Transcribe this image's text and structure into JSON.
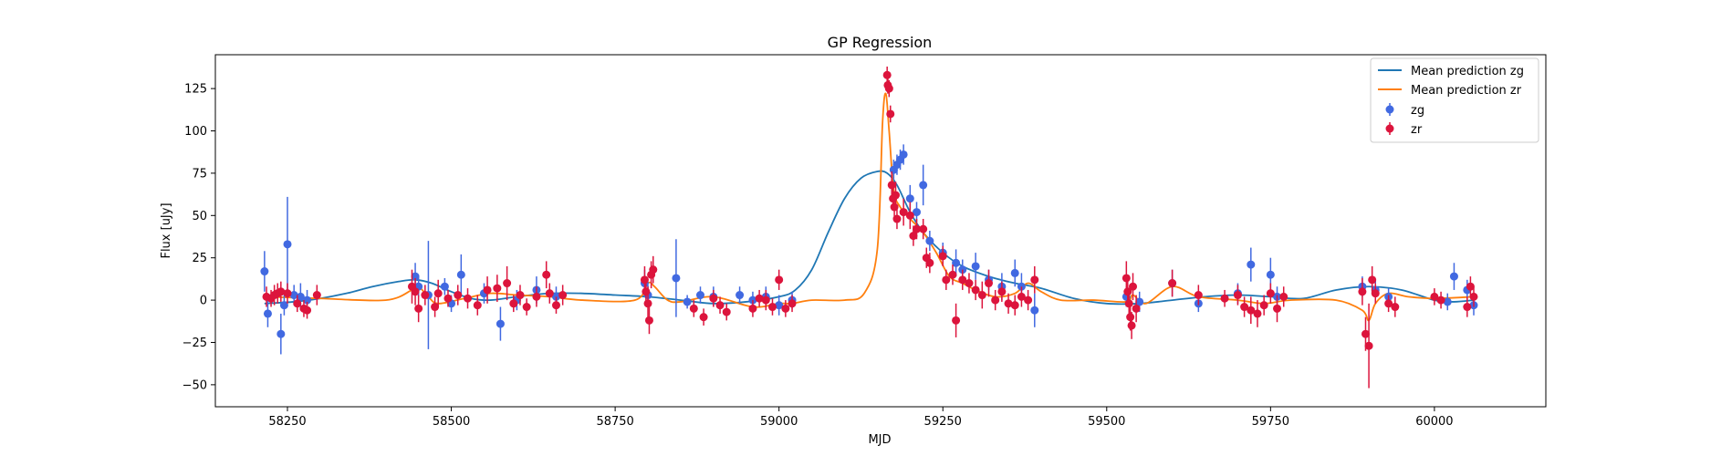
{
  "chart_data": {
    "type": "scatter",
    "title": "GP Regression",
    "xlabel": "MJD",
    "ylabel": "Flux [uJy]",
    "xlim": [
      58140,
      60170
    ],
    "ylim": [
      -63,
      145
    ],
    "xticks": [
      58250,
      58500,
      58750,
      59000,
      59250,
      59500,
      59750,
      60000
    ],
    "yticks": [
      -50,
      -25,
      0,
      25,
      50,
      75,
      100,
      125
    ],
    "legend": {
      "position": "top-right",
      "entries": [
        "Mean prediction zg",
        "Mean prediction zr",
        "zg",
        "zr"
      ]
    },
    "colors": {
      "zg_line": "#1f77b4",
      "zr_line": "#ff7f0e",
      "zg_points": "#4169e1",
      "zr_points": "#dc143c"
    },
    "series": [
      {
        "name": "Mean prediction zg",
        "kind": "line",
        "x": [
          58215,
          58260,
          58300,
          58340,
          58380,
          58420,
          58445,
          58470,
          58500,
          58530,
          58560,
          58600,
          58650,
          58700,
          58750,
          58800,
          58850,
          58900,
          58950,
          59000,
          59025,
          59050,
          59075,
          59100,
          59125,
          59150,
          59165,
          59180,
          59200,
          59220,
          59250,
          59280,
          59320,
          59360,
          59400,
          59450,
          59500,
          59550,
          59600,
          59650,
          59700,
          59750,
          59800,
          59850,
          59900,
          59950,
          60000,
          60030,
          60060
        ],
        "y": [
          -2,
          -1,
          1,
          4,
          8,
          11,
          12,
          10,
          5,
          1,
          0,
          2,
          4,
          4,
          3,
          2,
          0,
          -2,
          -1,
          2,
          6,
          18,
          40,
          60,
          72,
          76,
          75,
          68,
          52,
          40,
          28,
          20,
          14,
          10,
          7,
          1,
          -2,
          -2,
          0,
          2,
          3,
          2,
          1,
          6,
          8,
          6,
          0,
          -1,
          0
        ]
      },
      {
        "name": "Mean prediction zr",
        "kind": "line",
        "x": [
          58215,
          58300,
          58400,
          58440,
          58450,
          58465,
          58480,
          58520,
          58560,
          58600,
          58650,
          58700,
          58780,
          58800,
          58810,
          58830,
          58850,
          58900,
          58960,
          59000,
          59020,
          59050,
          59100,
          59130,
          59150,
          59158,
          59163,
          59168,
          59175,
          59185,
          59200,
          59220,
          59240,
          59260,
          59280,
          59300,
          59330,
          59360,
          59380,
          59400,
          59430,
          59480,
          59530,
          59540,
          59560,
          59600,
          59640,
          59700,
          59740,
          59780,
          59850,
          59890,
          59900,
          59910,
          59930,
          59960,
          60000,
          60060
        ],
        "y": [
          2,
          1,
          0,
          6,
          8,
          2,
          -2,
          1,
          4,
          3,
          2,
          0,
          0,
          10,
          8,
          0,
          -1,
          2,
          -4,
          -2,
          -2,
          0,
          0,
          4,
          30,
          105,
          122,
          100,
          65,
          55,
          48,
          40,
          28,
          14,
          10,
          6,
          2,
          4,
          10,
          5,
          0,
          0,
          -1,
          3,
          -2,
          8,
          2,
          0,
          -2,
          0,
          0,
          -6,
          -12,
          -2,
          4,
          2,
          1,
          2
        ]
      },
      {
        "name": "zg",
        "kind": "errorbar",
        "points": [
          [
            58215,
            17,
            12
          ],
          [
            58220,
            -8,
            8
          ],
          [
            58240,
            -20,
            12
          ],
          [
            58245,
            -3,
            6
          ],
          [
            58250,
            33,
            28
          ],
          [
            58260,
            3,
            6
          ],
          [
            58270,
            2,
            8
          ],
          [
            58280,
            0,
            6
          ],
          [
            58445,
            14,
            8
          ],
          [
            58450,
            8,
            6
          ],
          [
            58465,
            3,
            32
          ],
          [
            58490,
            8,
            5
          ],
          [
            58500,
            -2,
            5
          ],
          [
            58515,
            15,
            12
          ],
          [
            58550,
            4,
            6
          ],
          [
            58575,
            -14,
            10
          ],
          [
            58600,
            0,
            6
          ],
          [
            58630,
            6,
            8
          ],
          [
            58660,
            2,
            6
          ],
          [
            58795,
            10,
            8
          ],
          [
            58800,
            3,
            6
          ],
          [
            58843,
            13,
            23
          ],
          [
            58860,
            -1,
            4
          ],
          [
            58880,
            3,
            5
          ],
          [
            58900,
            2,
            6
          ],
          [
            58940,
            3,
            5
          ],
          [
            58960,
            0,
            5
          ],
          [
            58980,
            2,
            6
          ],
          [
            59000,
            -3,
            6
          ],
          [
            59020,
            0,
            5
          ],
          [
            59175,
            77,
            6
          ],
          [
            59180,
            80,
            6
          ],
          [
            59185,
            83,
            6
          ],
          [
            59190,
            86,
            6
          ],
          [
            59200,
            60,
            8
          ],
          [
            59210,
            52,
            6
          ],
          [
            59220,
            68,
            12
          ],
          [
            59230,
            35,
            6
          ],
          [
            59250,
            28,
            6
          ],
          [
            59270,
            22,
            8
          ],
          [
            59280,
            18,
            6
          ],
          [
            59300,
            20,
            8
          ],
          [
            59320,
            12,
            6
          ],
          [
            59340,
            8,
            8
          ],
          [
            59360,
            16,
            8
          ],
          [
            59370,
            8,
            8
          ],
          [
            59390,
            -6,
            10
          ],
          [
            59530,
            2,
            6
          ],
          [
            59550,
            -1,
            6
          ],
          [
            59600,
            10,
            8
          ],
          [
            59640,
            -2,
            5
          ],
          [
            59700,
            4,
            6
          ],
          [
            59720,
            21,
            10
          ],
          [
            59750,
            15,
            10
          ],
          [
            59760,
            2,
            6
          ],
          [
            59890,
            8,
            6
          ],
          [
            59910,
            6,
            6
          ],
          [
            59930,
            2,
            5
          ],
          [
            60020,
            -1,
            5
          ],
          [
            60030,
            14,
            8
          ],
          [
            60050,
            6,
            6
          ],
          [
            60060,
            -3,
            6
          ]
        ]
      },
      {
        "name": "zr",
        "kind": "errorbar",
        "points": [
          [
            58218,
            2,
            6
          ],
          [
            58225,
            1,
            5
          ],
          [
            58230,
            3,
            6
          ],
          [
            58235,
            4,
            6
          ],
          [
            58240,
            5,
            6
          ],
          [
            58250,
            4,
            6
          ],
          [
            58265,
            -2,
            5
          ],
          [
            58275,
            -5,
            5
          ],
          [
            58280,
            -6,
            5
          ],
          [
            58295,
            3,
            6
          ],
          [
            58440,
            8,
            10
          ],
          [
            58445,
            5,
            8
          ],
          [
            58450,
            -5,
            8
          ],
          [
            58460,
            3,
            6
          ],
          [
            58475,
            -4,
            6
          ],
          [
            58480,
            4,
            8
          ],
          [
            58495,
            1,
            5
          ],
          [
            58510,
            3,
            6
          ],
          [
            58525,
            1,
            6
          ],
          [
            58540,
            -3,
            6
          ],
          [
            58555,
            6,
            8
          ],
          [
            58570,
            7,
            8
          ],
          [
            58585,
            10,
            10
          ],
          [
            58595,
            -2,
            5
          ],
          [
            58605,
            3,
            6
          ],
          [
            58615,
            -4,
            5
          ],
          [
            58630,
            2,
            6
          ],
          [
            58645,
            15,
            8
          ],
          [
            58650,
            4,
            6
          ],
          [
            58660,
            -3,
            5
          ],
          [
            58670,
            3,
            6
          ],
          [
            58795,
            12,
            8
          ],
          [
            58797,
            5,
            6
          ],
          [
            58800,
            -2,
            10
          ],
          [
            58802,
            -12,
            8
          ],
          [
            58805,
            15,
            8
          ],
          [
            58808,
            18,
            8
          ],
          [
            58870,
            -5,
            5
          ],
          [
            58885,
            -10,
            5
          ],
          [
            58900,
            1,
            5
          ],
          [
            58910,
            -3,
            5
          ],
          [
            58920,
            -7,
            5
          ],
          [
            58960,
            -5,
            5
          ],
          [
            58970,
            1,
            5
          ],
          [
            58980,
            0,
            6
          ],
          [
            58990,
            -4,
            5
          ],
          [
            59000,
            12,
            6
          ],
          [
            59010,
            -5,
            5
          ],
          [
            59020,
            -2,
            5
          ],
          [
            59165,
            133,
            5
          ],
          [
            59166,
            127,
            5
          ],
          [
            59168,
            125,
            5
          ],
          [
            59170,
            110,
            5
          ],
          [
            59172,
            68,
            8
          ],
          [
            59174,
            60,
            6
          ],
          [
            59176,
            55,
            6
          ],
          [
            59178,
            62,
            8
          ],
          [
            59180,
            48,
            6
          ],
          [
            59190,
            52,
            8
          ],
          [
            59200,
            50,
            8
          ],
          [
            59205,
            38,
            6
          ],
          [
            59210,
            42,
            6
          ],
          [
            59220,
            42,
            6
          ],
          [
            59225,
            25,
            6
          ],
          [
            59230,
            22,
            6
          ],
          [
            59250,
            26,
            6
          ],
          [
            59255,
            12,
            6
          ],
          [
            59265,
            15,
            6
          ],
          [
            59270,
            -12,
            10
          ],
          [
            59280,
            12,
            6
          ],
          [
            59290,
            10,
            6
          ],
          [
            59300,
            6,
            6
          ],
          [
            59310,
            3,
            8
          ],
          [
            59320,
            10,
            8
          ],
          [
            59330,
            0,
            6
          ],
          [
            59340,
            5,
            6
          ],
          [
            59350,
            -2,
            6
          ],
          [
            59360,
            -3,
            6
          ],
          [
            59370,
            2,
            6
          ],
          [
            59380,
            0,
            6
          ],
          [
            59390,
            12,
            8
          ],
          [
            59530,
            13,
            10
          ],
          [
            59532,
            5,
            8
          ],
          [
            59534,
            -2,
            8
          ],
          [
            59536,
            -10,
            8
          ],
          [
            59538,
            -15,
            8
          ],
          [
            59540,
            8,
            8
          ],
          [
            59545,
            -5,
            8
          ],
          [
            59600,
            10,
            8
          ],
          [
            59640,
            3,
            6
          ],
          [
            59680,
            1,
            5
          ],
          [
            59700,
            3,
            6
          ],
          [
            59710,
            -4,
            6
          ],
          [
            59720,
            -6,
            8
          ],
          [
            59730,
            -8,
            8
          ],
          [
            59740,
            -3,
            6
          ],
          [
            59750,
            4,
            6
          ],
          [
            59760,
            -5,
            8
          ],
          [
            59770,
            2,
            6
          ],
          [
            59890,
            5,
            8
          ],
          [
            59895,
            -20,
            10
          ],
          [
            59900,
            -27,
            25
          ],
          [
            59905,
            12,
            8
          ],
          [
            59910,
            4,
            6
          ],
          [
            59930,
            -2,
            5
          ],
          [
            59940,
            -4,
            6
          ],
          [
            60000,
            2,
            5
          ],
          [
            60010,
            0,
            5
          ],
          [
            60050,
            -4,
            6
          ],
          [
            60055,
            8,
            6
          ],
          [
            60060,
            2,
            6
          ]
        ]
      }
    ]
  }
}
